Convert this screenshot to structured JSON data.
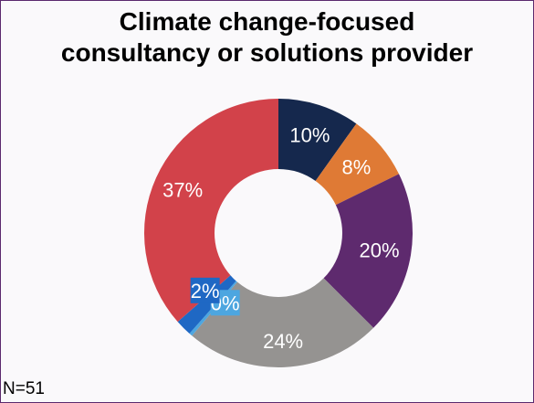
{
  "chart_data": {
    "type": "pie",
    "variant": "donut",
    "title_lines": [
      "Climate change-focused",
      "consultancy or solutions provider"
    ],
    "slices": [
      {
        "label": "10%",
        "value": 10,
        "color": "#15284d",
        "label_bg": ""
      },
      {
        "label": "8%",
        "value": 8,
        "color": "#df7a35",
        "label_bg": ""
      },
      {
        "label": "20%",
        "value": 20,
        "color": "#5e2a6e",
        "label_bg": ""
      },
      {
        "label": "24%",
        "value": 24,
        "color": "#959391",
        "label_bg": ""
      },
      {
        "label": "0%",
        "value": 0.4,
        "color": "#4da6e0",
        "label_bg": "#4da6e0"
      },
      {
        "label": "2%",
        "value": 2,
        "color": "#1f68c4",
        "label_bg": "#1f68c4"
      },
      {
        "label": "37%",
        "value": 37,
        "color": "#d2424a",
        "label_bg": ""
      }
    ],
    "footnote": "N=51"
  }
}
